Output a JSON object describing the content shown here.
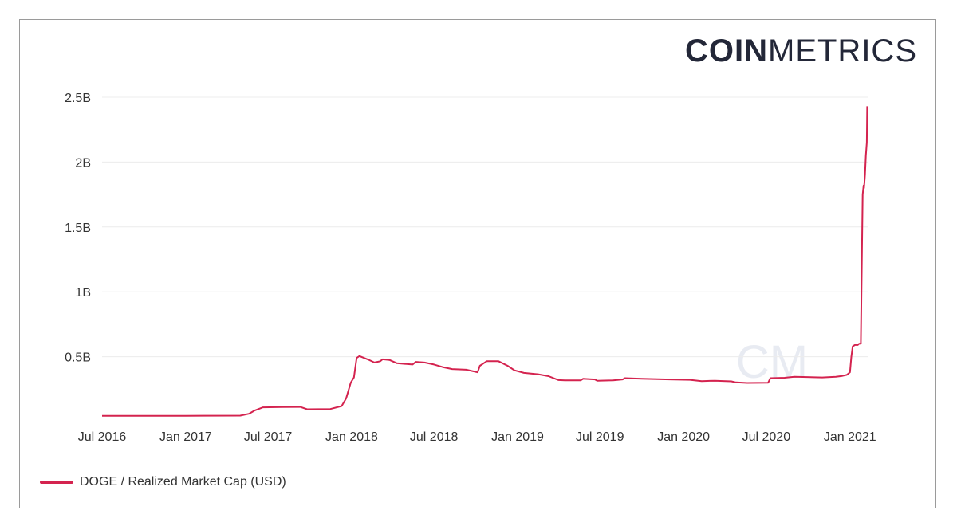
{
  "logo": {
    "bold": "COIN",
    "light": "METRICS"
  },
  "watermark": "CM",
  "chart_data": {
    "type": "line",
    "title": "",
    "xlabel": "",
    "ylabel": "",
    "y_tick_labels": [
      "0.5B",
      "1B",
      "1.5B",
      "2B",
      "2.5B"
    ],
    "y_ticks": [
      0.5,
      1.0,
      1.5,
      2.0,
      2.5
    ],
    "x_tick_labels": [
      "Jul 2016",
      "Jan 2017",
      "Jul 2017",
      "Jan 2018",
      "Jul 2018",
      "Jan 2019",
      "Jul 2019",
      "Jan 2020",
      "Jul 2020",
      "Jan 2021"
    ],
    "x_ticks": [
      "2016-07-01",
      "2017-01-01",
      "2017-07-01",
      "2018-01-01",
      "2018-07-01",
      "2019-01-01",
      "2019-07-01",
      "2020-01-01",
      "2020-07-01",
      "2021-01-01"
    ],
    "xlim": [
      "2016-07-01",
      "2021-02-09"
    ],
    "ylim": [
      0,
      2.5
    ],
    "grid": true,
    "legend_position": "bottom-left",
    "color": "#d4234f",
    "series": [
      {
        "name": "DOGE / Realized Market Cap (USD)",
        "unit": "B",
        "points": [
          [
            "2016-07-01",
            0.045
          ],
          [
            "2017-01-01",
            0.045
          ],
          [
            "2017-05-01",
            0.046
          ],
          [
            "2017-05-20",
            0.06
          ],
          [
            "2017-06-01",
            0.085
          ],
          [
            "2017-06-20",
            0.11
          ],
          [
            "2017-08-01",
            0.112
          ],
          [
            "2017-09-10",
            0.113
          ],
          [
            "2017-09-25",
            0.095
          ],
          [
            "2017-11-15",
            0.097
          ],
          [
            "2017-12-10",
            0.12
          ],
          [
            "2017-12-20",
            0.18
          ],
          [
            "2017-12-30",
            0.3
          ],
          [
            "2018-01-06",
            0.34
          ],
          [
            "2018-01-12",
            0.49
          ],
          [
            "2018-01-18",
            0.505
          ],
          [
            "2018-02-05",
            0.48
          ],
          [
            "2018-02-20",
            0.455
          ],
          [
            "2018-03-05",
            0.465
          ],
          [
            "2018-03-10",
            0.48
          ],
          [
            "2018-03-25",
            0.475
          ],
          [
            "2018-04-10",
            0.45
          ],
          [
            "2018-05-15",
            0.44
          ],
          [
            "2018-05-22",
            0.46
          ],
          [
            "2018-06-10",
            0.455
          ],
          [
            "2018-07-01",
            0.44
          ],
          [
            "2018-07-20",
            0.42
          ],
          [
            "2018-08-10",
            0.405
          ],
          [
            "2018-09-10",
            0.4
          ],
          [
            "2018-10-05",
            0.38
          ],
          [
            "2018-10-10",
            0.43
          ],
          [
            "2018-10-25",
            0.465
          ],
          [
            "2018-11-20",
            0.465
          ],
          [
            "2018-12-10",
            0.43
          ],
          [
            "2018-12-25",
            0.395
          ],
          [
            "2019-01-15",
            0.375
          ],
          [
            "2019-02-15",
            0.365
          ],
          [
            "2019-03-10",
            0.35
          ],
          [
            "2019-04-01",
            0.32
          ],
          [
            "2019-04-15",
            0.318
          ],
          [
            "2019-05-20",
            0.318
          ],
          [
            "2019-05-25",
            0.33
          ],
          [
            "2019-06-20",
            0.325
          ],
          [
            "2019-06-25",
            0.315
          ],
          [
            "2019-07-30",
            0.318
          ],
          [
            "2019-08-20",
            0.325
          ],
          [
            "2019-08-25",
            0.335
          ],
          [
            "2019-10-01",
            0.33
          ],
          [
            "2019-12-01",
            0.325
          ],
          [
            "2020-01-15",
            0.322
          ],
          [
            "2020-02-10",
            0.312
          ],
          [
            "2020-03-10",
            0.315
          ],
          [
            "2020-04-15",
            0.31
          ],
          [
            "2020-04-25",
            0.302
          ],
          [
            "2020-05-20",
            0.298
          ],
          [
            "2020-07-05",
            0.3
          ],
          [
            "2020-07-10",
            0.335
          ],
          [
            "2020-08-10",
            0.338
          ],
          [
            "2020-09-01",
            0.345
          ],
          [
            "2020-11-01",
            0.34
          ],
          [
            "2020-12-01",
            0.345
          ],
          [
            "2020-12-15",
            0.352
          ],
          [
            "2020-12-25",
            0.36
          ],
          [
            "2021-01-01",
            0.38
          ],
          [
            "2021-01-04",
            0.5
          ],
          [
            "2021-01-07",
            0.58
          ],
          [
            "2021-01-12",
            0.59
          ],
          [
            "2021-01-18",
            0.59
          ],
          [
            "2021-01-21",
            0.6
          ],
          [
            "2021-01-25",
            0.6
          ],
          [
            "2021-01-29",
            1.75
          ],
          [
            "2021-01-31",
            1.82
          ],
          [
            "2021-02-01",
            1.8
          ],
          [
            "2021-02-03",
            1.9
          ],
          [
            "2021-02-05",
            2.05
          ],
          [
            "2021-02-07",
            2.15
          ],
          [
            "2021-02-08",
            2.43
          ]
        ]
      }
    ]
  }
}
